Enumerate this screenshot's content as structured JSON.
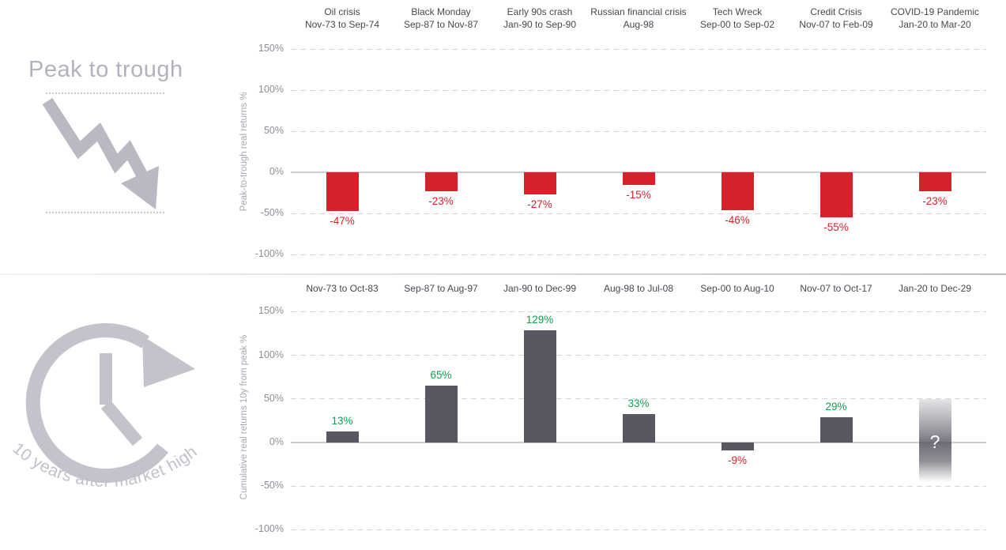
{
  "left_panel": {
    "top": {
      "title": "Peak to trough",
      "icon": "downward-zigzag-arrow-icon"
    },
    "bottom": {
      "curved_caption": "10 years after market high",
      "icon": "clock-redo-icon"
    }
  },
  "colors": {
    "negative_bar": "#d7222b",
    "negative_label": "#d7222b",
    "positive_bar": "#5a5763",
    "positive_label": "#0fa24c",
    "watermark_gray": "#c3c3cc",
    "gridline": "#d6d6da",
    "unknown_bar_gray": "#5a5763"
  },
  "chart_data": [
    {
      "type": "bar",
      "name": "peak-to-trough-real-returns",
      "ylabel": "Peak-to-trough real returns %",
      "ylim": [
        -100,
        150
      ],
      "yticks": [
        150,
        100,
        50,
        0,
        -50,
        -100
      ],
      "grid": "dashed-horizontal",
      "legend": "none",
      "categories": [
        {
          "event": "Oil crisis",
          "period": "Nov-73 to Sep-74"
        },
        {
          "event": "Black Monday",
          "period": "Sep-87 to Nov-87"
        },
        {
          "event": "Early 90s crash",
          "period": "Jan-90 to Sep-90"
        },
        {
          "event": "Russian financial crisis",
          "period": "Aug-98"
        },
        {
          "event": "Tech Wreck",
          "period": "Sep-00 to Sep-02"
        },
        {
          "event": "Credit Crisis",
          "period": "Nov-07 to Feb-09"
        },
        {
          "event": "COVID-19 Pandemic",
          "period": "Jan-20 to Mar-20"
        }
      ],
      "values": [
        -47,
        -23,
        -27,
        -15,
        -46,
        -55,
        -23
      ],
      "value_labels": [
        "-47%",
        "-23%",
        "-27%",
        "-15%",
        "-46%",
        "-55%",
        "-23%"
      ],
      "bar_color": "#d7222b",
      "value_label_color": "#d7222b"
    },
    {
      "type": "bar",
      "name": "cumulative-real-returns-10y",
      "ylabel": "Cumulative real returns 10y from peak %",
      "ylim": [
        -100,
        150
      ],
      "yticks": [
        150,
        100,
        50,
        0,
        -50,
        -100
      ],
      "grid": "dashed-horizontal",
      "legend": "none",
      "categories": [
        "Nov-73 to Oct-83",
        "Sep-87 to Aug-97",
        "Jan-90 to Dec-99",
        "Aug-98 to Jul-08",
        "Sep-00 to Aug-10",
        "Nov-07 to Oct-17",
        "Jan-20 to Dec-29"
      ],
      "values": [
        13,
        65,
        129,
        33,
        -9,
        29,
        null
      ],
      "value_labels": [
        "13%",
        "65%",
        "129%",
        "33%",
        "-9%",
        "29%",
        "?"
      ],
      "bar_color": "#5a5763",
      "positive_label_color": "#0fa24c",
      "negative_label_color": "#d7222b",
      "unknown_bar": {
        "index": 6,
        "label": "?",
        "span_pct": [
          50,
          -45
        ]
      }
    }
  ]
}
